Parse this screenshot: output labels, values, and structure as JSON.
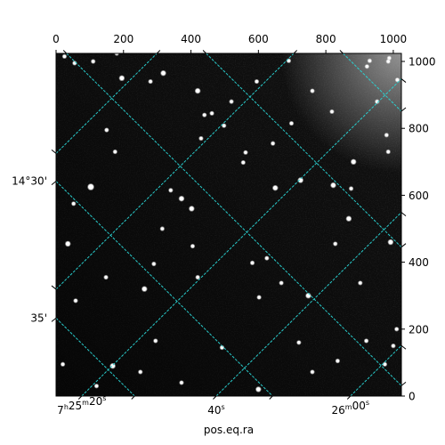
{
  "chart_data": {
    "type": "image",
    "xlabel": "pos.eq.ra",
    "ylabel": "",
    "pixel_x": {
      "range": [
        0,
        1024
      ],
      "ticks": [
        0,
        200,
        400,
        600,
        800,
        1000
      ],
      "tick_labels": [
        "0",
        "200",
        "400",
        "600",
        "800",
        "1000"
      ]
    },
    "pixel_y": {
      "range": [
        0,
        1024
      ],
      "ticks": [
        0,
        200,
        400,
        600,
        800,
        1000
      ],
      "tick_labels": [
        "0",
        "200",
        "400",
        "600",
        "800",
        "1000"
      ]
    },
    "ra_ticks": [
      {
        "label_h": "7",
        "label_m": "25",
        "label_s": "20",
        "px": 76
      },
      {
        "label_h": "",
        "label_m": "",
        "label_s": "40",
        "px": 475
      },
      {
        "label_h": "",
        "label_m": "26",
        "label_s": "00",
        "px": 873
      }
    ],
    "dec_ticks": [
      {
        "label": "14°30'",
        "px": 642
      },
      {
        "label": "35'",
        "px": 233
      }
    ],
    "ra_grid_px": [
      [
        [
          76,
          0
        ],
        [
          1024,
          948
        ]
      ],
      [
        [
          0,
          319
        ],
        [
          705,
          1024
        ]
      ],
      [
        [
          475,
          0
        ],
        [
          1024,
          549
        ]
      ],
      [
        [
          0,
          725
        ],
        [
          299,
          1024
        ]
      ],
      [
        [
          873,
          0
        ],
        [
          1024,
          151
        ]
      ]
    ],
    "dec_grid_px": [
      [
        [
          0,
          233
        ],
        [
          233,
          0
        ]
      ],
      [
        [
          0,
          642
        ],
        [
          642,
          0
        ]
      ],
      [
        [
          31,
          1024
        ],
        [
          1024,
          31
        ]
      ],
      [
        [
          445,
          1024
        ],
        [
          1024,
          445
        ]
      ],
      [
        [
          851,
          1024
        ],
        [
          1024,
          851
        ]
      ]
    ],
    "grid_color": "#2ad4d4",
    "colormap": "gray",
    "stars": [
      [
        35,
        455,
        4
      ],
      [
        103,
        625,
        5
      ],
      [
        148,
        355,
        3
      ],
      [
        175,
        730,
        3
      ],
      [
        262,
        320,
        4
      ],
      [
        290,
        395,
        3
      ],
      [
        318,
        965,
        4
      ],
      [
        372,
        590,
        4
      ],
      [
        402,
        560,
        4
      ],
      [
        420,
        912,
        4
      ],
      [
        440,
        840,
        3
      ],
      [
        462,
        845,
        3
      ],
      [
        405,
        448,
        3
      ],
      [
        430,
        770,
        3
      ],
      [
        498,
        808,
        3
      ],
      [
        555,
        698,
        3
      ],
      [
        562,
        728,
        3
      ],
      [
        582,
        398,
        3
      ],
      [
        602,
        295,
        3
      ],
      [
        625,
        412,
        3
      ],
      [
        650,
        622,
        4
      ],
      [
        643,
        755,
        3
      ],
      [
        668,
        338,
        3
      ],
      [
        698,
        815,
        3
      ],
      [
        725,
        645,
        4
      ],
      [
        748,
        300,
        4
      ],
      [
        760,
        912,
        3
      ],
      [
        822,
        630,
        4
      ],
      [
        818,
        850,
        3
      ],
      [
        828,
        455,
        3
      ],
      [
        868,
        530,
        4
      ],
      [
        882,
        700,
        4
      ],
      [
        902,
        338,
        3
      ],
      [
        922,
        985,
        3
      ],
      [
        952,
        880,
        3
      ],
      [
        980,
        780,
        3
      ],
      [
        992,
        460,
        4
      ],
      [
        1012,
        945,
        3
      ],
      [
        1010,
        200,
        3
      ],
      [
        280,
        940,
        3
      ],
      [
        195,
        950,
        4
      ],
      [
        150,
        795,
        3
      ],
      [
        58,
        285,
        3
      ],
      [
        52,
        575,
        3
      ],
      [
        20,
        95,
        3
      ],
      [
        120,
        30,
        3
      ],
      [
        168,
        90,
        4
      ],
      [
        250,
        72,
        3
      ],
      [
        295,
        165,
        3
      ],
      [
        372,
        40,
        3
      ],
      [
        492,
        145,
        3
      ],
      [
        600,
        20,
        4
      ],
      [
        720,
        160,
        3
      ],
      [
        760,
        72,
        3
      ],
      [
        835,
        105,
        3
      ],
      [
        920,
        165,
        3
      ],
      [
        975,
        95,
        3
      ],
      [
        1000,
        150,
        3
      ],
      [
        55,
        995,
        3
      ],
      [
        110,
        1000,
        3
      ],
      [
        690,
        1002,
        3
      ],
      [
        930,
        1002,
        3
      ],
      [
        985,
        730,
        3
      ],
      [
        340,
        615,
        3
      ],
      [
        315,
        500,
        3
      ],
      [
        520,
        880,
        3
      ],
      [
        875,
        620,
        3
      ],
      [
        420,
        355,
        3
      ],
      [
        180,
        1024,
        3
      ],
      [
        25,
        1015,
        3
      ],
      [
        988,
        1010,
        3
      ],
      [
        595,
        940,
        3
      ],
      [
        985,
        1000,
        3
      ]
    ]
  }
}
